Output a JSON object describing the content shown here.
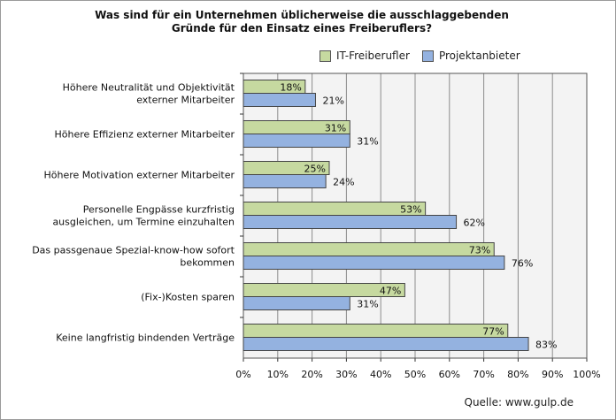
{
  "chart_data": {
    "type": "bar",
    "orientation": "horizontal",
    "title_line1": "Was sind für ein Unternehmen üblicherweise die ausschlaggebenden",
    "title_line2": "Gründe für den Einsatz eines Freiberuflers?",
    "categories": [
      [
        "Höhere Neutralität und Objektivität",
        "externer Mitarbeiter"
      ],
      [
        "Höhere Effizienz externer Mitarbeiter"
      ],
      [
        "Höhere Motivation externer Mitarbeiter"
      ],
      [
        "Personelle Engpässe kurzfristig",
        "ausgleichen, um Termine einzuhalten"
      ],
      [
        "Das passgenaue Spezial-know-how sofort",
        "bekommen"
      ],
      [
        "(Fix-)Kosten sparen"
      ],
      [
        "Keine langfristig bindenden Verträge"
      ]
    ],
    "series": [
      {
        "name": "IT-Freiberufler",
        "color": "#c6d9a0",
        "values": [
          18,
          31,
          25,
          53,
          73,
          47,
          77
        ]
      },
      {
        "name": "Projektanbieter",
        "color": "#94b2e0",
        "values": [
          21,
          31,
          24,
          62,
          76,
          31,
          83
        ]
      }
    ],
    "value_suffix": "%",
    "xlim": [
      0,
      100
    ],
    "xticks": [
      "0%",
      "10%",
      "20%",
      "30%",
      "40%",
      "50%",
      "60%",
      "70%",
      "80%",
      "90%",
      "100%"
    ],
    "grid": true,
    "legend_position": "top-right",
    "source": "Quelle: www.gulp.de"
  }
}
